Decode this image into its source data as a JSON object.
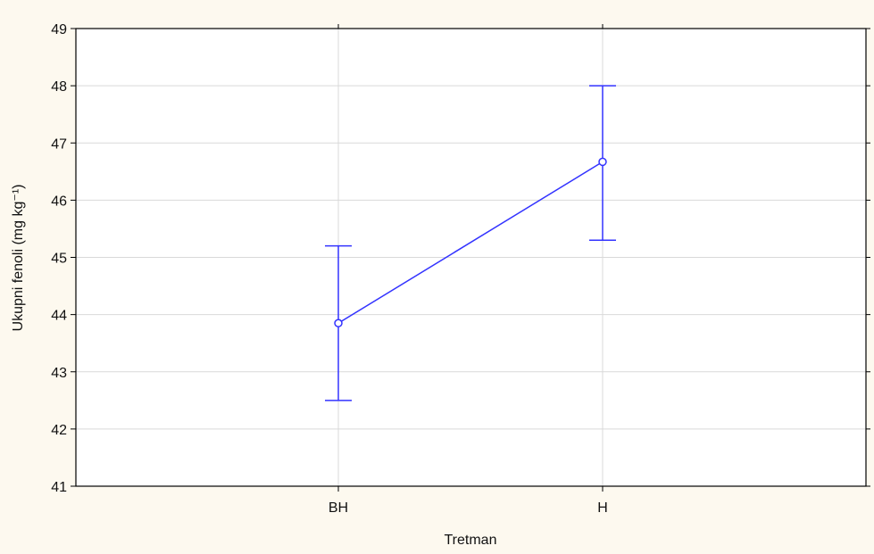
{
  "chart_data": {
    "type": "line",
    "xlabel": "Tretman",
    "ylabel": "Ukupni fenoli (mg kg⁻¹)",
    "categories": [
      "BH",
      "H"
    ],
    "series": [
      {
        "values": [
          43.85,
          46.67
        ],
        "error_low": [
          42.5,
          45.3
        ],
        "error_high": [
          45.2,
          48.0
        ]
      }
    ],
    "ylim": [
      41,
      49
    ],
    "yticks": [
      "41",
      "42",
      "43",
      "44",
      "45",
      "46",
      "47",
      "48",
      "49"
    ],
    "grid": true,
    "colors": {
      "background": "#fdf9ef",
      "plot_background": "#ffffff",
      "series": "#3333ff",
      "grid": "#d9d9d9",
      "axis": "#000000"
    }
  }
}
